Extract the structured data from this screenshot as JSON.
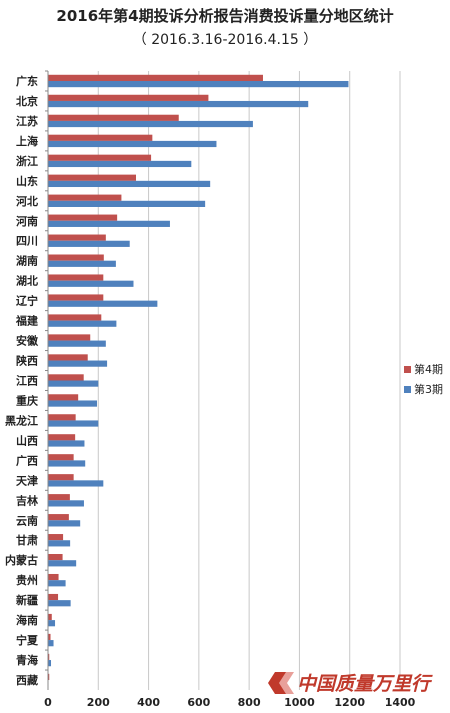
{
  "colors": {
    "series_4": "#c0504d",
    "series_3": "#4f81bd",
    "gridline": "#c8c8c8",
    "axis": "#888888",
    "watermark": "#c0392b"
  },
  "watermark": {
    "text": "中国质量万里行",
    "icon": "logo-chevron-icon"
  },
  "chart_data": {
    "type": "bar",
    "orientation": "horizontal",
    "title": "2016年第4期投诉分析报告消费投诉量分地区统计",
    "subtitle": "（ 2016.3.16-2016.4.15 ）",
    "xlabel": "",
    "ylabel": "",
    "xlim": [
      0,
      1400
    ],
    "x_ticks": [
      "0",
      "200",
      "400",
      "600",
      "800",
      "1000",
      "1200",
      "1400"
    ],
    "grid": true,
    "legend_position": "right",
    "categories": [
      "广东",
      "北京",
      "江苏",
      "上海",
      "浙江",
      "山东",
      "河北",
      "河南",
      "四川",
      "湖南",
      "湖北",
      "辽宁",
      "福建",
      "安徽",
      "陕西",
      "江西",
      "重庆",
      "黑龙江",
      "山西",
      "广西",
      "天津",
      "吉林",
      "云南",
      "甘肃",
      "内蒙古",
      "贵州",
      "新疆",
      "海南",
      "宁夏",
      "青海",
      "西藏"
    ],
    "series": [
      {
        "name": "第4期",
        "color": "#c0504d",
        "values": [
          855,
          638,
          520,
          415,
          410,
          350,
          292,
          275,
          230,
          222,
          220,
          220,
          212,
          168,
          158,
          142,
          120,
          110,
          108,
          102,
          102,
          87,
          83,
          60,
          58,
          42,
          40,
          15,
          10,
          5,
          5
        ]
      },
      {
        "name": "第3期",
        "color": "#4f81bd",
        "values": [
          1195,
          1035,
          815,
          670,
          570,
          645,
          625,
          485,
          325,
          270,
          340,
          435,
          272,
          230,
          235,
          200,
          195,
          200,
          145,
          148,
          220,
          143,
          128,
          88,
          112,
          70,
          90,
          28,
          22,
          12,
          0
        ]
      }
    ]
  }
}
